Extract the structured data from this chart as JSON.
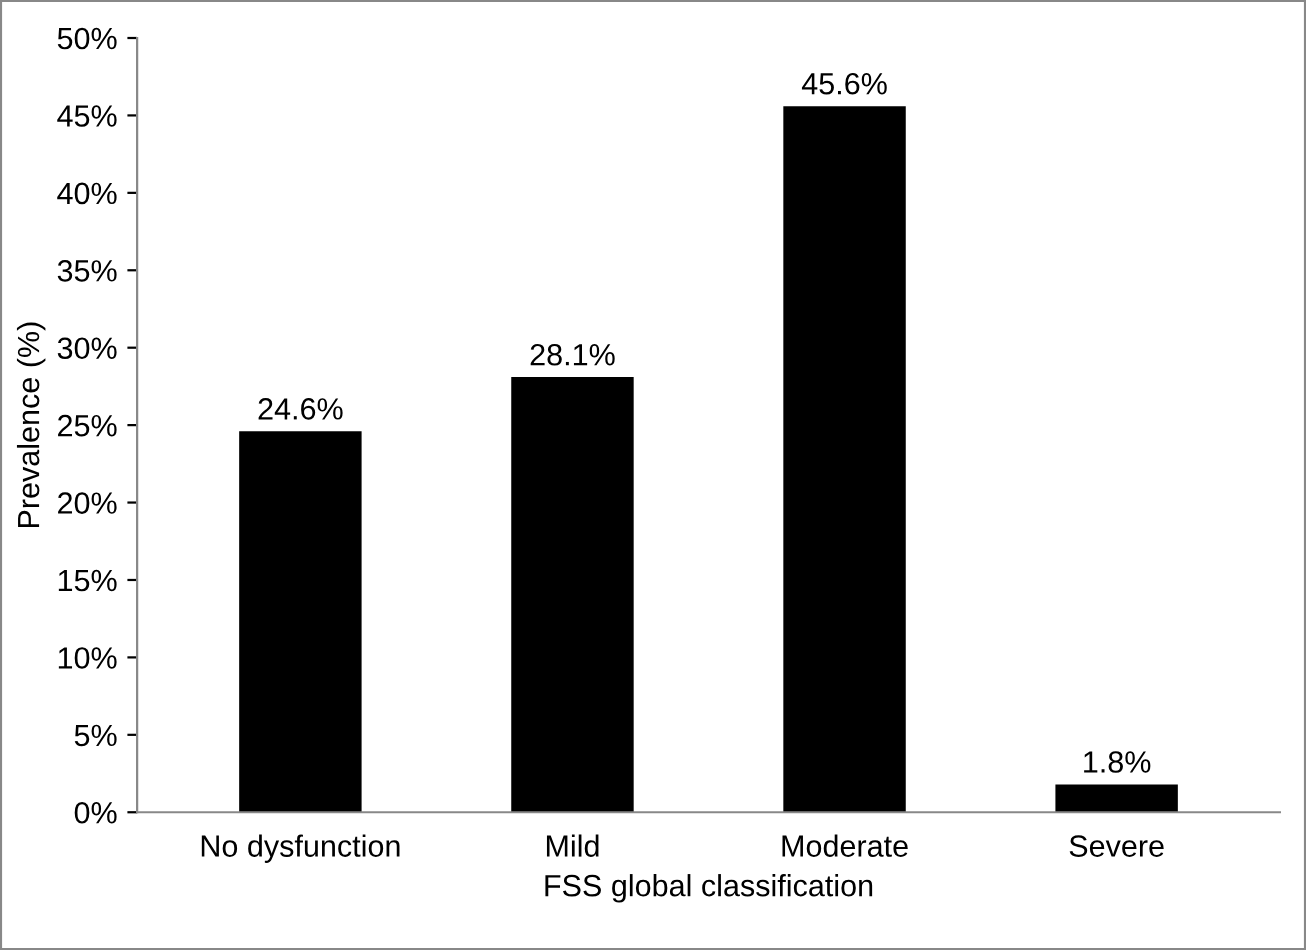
{
  "chart_data": {
    "type": "bar",
    "xlabel": "FSS global classification",
    "ylabel": "Prevalence (%)",
    "categories": [
      "No dysfunction",
      "Mild",
      "Moderate",
      "Severe"
    ],
    "values": [
      24.6,
      28.1,
      45.6,
      1.8
    ],
    "color": "#000000",
    "value_labels": [
      "24.6%",
      "28.1%",
      "45.6%",
      "1.8%"
    ],
    "ylim": [
      0,
      50
    ],
    "yticks": [
      {
        "value": 0,
        "label": "0%"
      },
      {
        "value": 5,
        "label": "5%"
      },
      {
        "value": 10,
        "label": "10%"
      },
      {
        "value": 15,
        "label": "15%"
      },
      {
        "value": 20,
        "label": "20%"
      },
      {
        "value": 25,
        "label": "25%"
      },
      {
        "value": 30,
        "label": "30%"
      },
      {
        "value": 35,
        "label": "35%"
      },
      {
        "value": 40,
        "label": "40%"
      },
      {
        "value": 45,
        "label": "45%"
      },
      {
        "value": 50,
        "label": "50%"
      }
    ],
    "grid": false,
    "legend": false
  }
}
